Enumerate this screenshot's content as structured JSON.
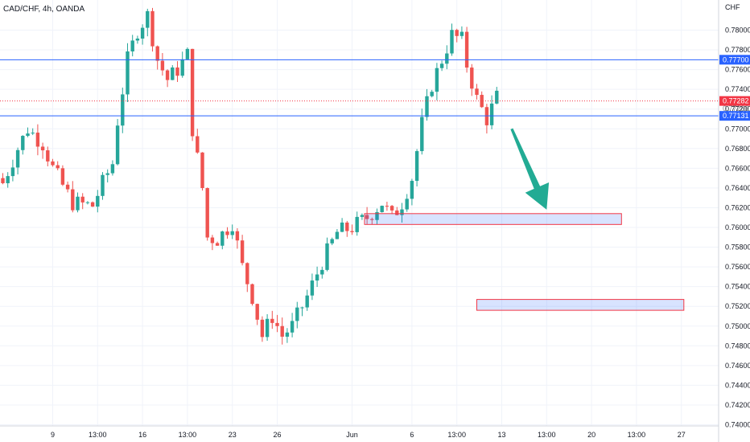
{
  "header": {
    "symbol": "CAD/CHF, 4h, OANDA"
  },
  "axis": {
    "currency": "CHF"
  },
  "chart_data": {
    "type": "candlestick",
    "ylim": [
      0.74,
      0.782
    ],
    "y_ticks": [
      "0.78000",
      "0.77800",
      "0.77600",
      "0.77400",
      "0.77200",
      "0.77000",
      "0.76800",
      "0.76600",
      "0.76400",
      "0.76200",
      "0.76000",
      "0.75800",
      "0.75600",
      "0.75400",
      "0.75200",
      "0.75000",
      "0.74800",
      "0.74600",
      "0.74400",
      "0.74200",
      "0.74000"
    ],
    "x_ticks": [
      "9",
      "13:00",
      "16",
      "13:00",
      "23",
      "26",
      "Jun",
      "6",
      "13:00",
      "13",
      "13:00",
      "20",
      "13:00",
      "27"
    ],
    "x_tick_index": [
      10,
      19,
      28,
      37,
      46,
      55,
      70,
      82,
      91,
      100,
      109,
      118,
      127,
      136
    ],
    "x_range": [
      0,
      149
    ],
    "candle_count": 100,
    "anchors": [
      [
        0,
        0.7645
      ],
      [
        3,
        0.768
      ],
      [
        5,
        0.77
      ],
      [
        8,
        0.7685
      ],
      [
        10,
        0.766
      ],
      [
        14,
        0.7625
      ],
      [
        18,
        0.7622
      ],
      [
        20,
        0.7645
      ],
      [
        22,
        0.7665
      ],
      [
        23,
        0.7708
      ],
      [
        25,
        0.777
      ],
      [
        27,
        0.78
      ],
      [
        29,
        0.7815
      ],
      [
        31,
        0.777
      ],
      [
        33,
        0.775
      ],
      [
        35,
        0.776
      ],
      [
        37,
        0.7775
      ],
      [
        38,
        0.77
      ],
      [
        40,
        0.764
      ],
      [
        41,
        0.759
      ],
      [
        43,
        0.7588
      ],
      [
        46,
        0.7605
      ],
      [
        48,
        0.756
      ],
      [
        50,
        0.753
      ],
      [
        52,
        0.749
      ],
      [
        54,
        0.751
      ],
      [
        56,
        0.749
      ],
      [
        58,
        0.75
      ],
      [
        61,
        0.753
      ],
      [
        64,
        0.7565
      ],
      [
        67,
        0.7595
      ],
      [
        70,
        0.76
      ],
      [
        73,
        0.761
      ],
      [
        76,
        0.7625
      ],
      [
        78,
        0.761
      ],
      [
        80,
        0.7625
      ],
      [
        82,
        0.765
      ],
      [
        84,
        0.7705
      ],
      [
        86,
        0.7745
      ],
      [
        88,
        0.777
      ],
      [
        90,
        0.7795
      ],
      [
        92,
        0.779
      ],
      [
        93,
        0.7765
      ],
      [
        95,
        0.773
      ],
      [
        97,
        0.771
      ],
      [
        99,
        0.7732
      ]
    ],
    "horizontal_levels": [
      {
        "label": "0.77700",
        "value": 0.777,
        "style": "solid",
        "color": "#2962ff",
        "badge_bg": "#2962ff"
      },
      {
        "label": "0.77282",
        "value": 0.77282,
        "style": "dotted",
        "color": "#f23645",
        "badge_bg": "#f23645"
      },
      {
        "label": "0.77131",
        "value": 0.77131,
        "style": "solid",
        "color": "#2962ff",
        "badge_bg": "#2962ff"
      }
    ],
    "hidden_badge": "0.77200",
    "zones": [
      {
        "name": "zone-upper",
        "x_start": 72.5,
        "x_end": 124,
        "y_top": 0.7614,
        "y_bottom": 0.7603
      },
      {
        "name": "zone-lower",
        "x_start": 95,
        "x_end": 136.5,
        "y_top": 0.7527,
        "y_bottom": 0.7516
      }
    ],
    "arrow": {
      "from": [
        102,
        0.77
      ],
      "to": [
        109,
        0.7618
      ],
      "color": "#22ab94"
    },
    "colors": {
      "up": "#26a69a",
      "down": "#ef5350",
      "grid": "#f0f3fa",
      "axis": "#d1d4dc"
    }
  }
}
